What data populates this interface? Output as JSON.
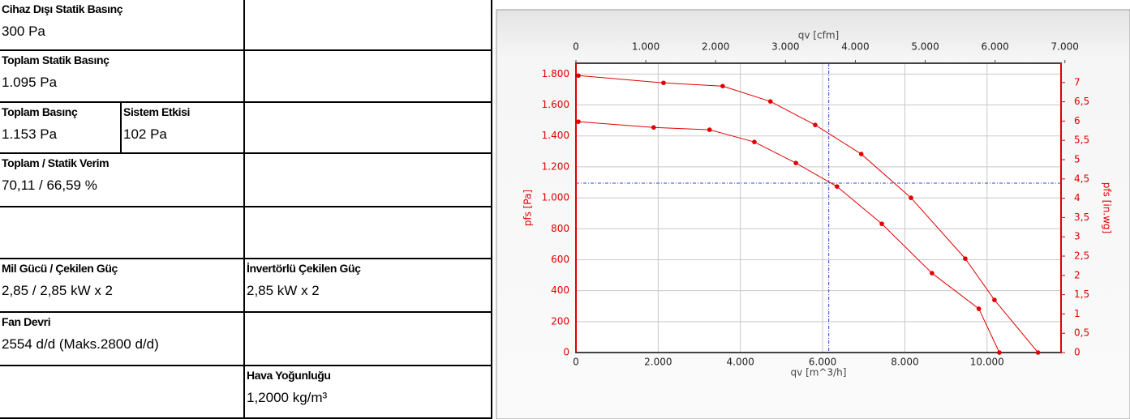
{
  "table": {
    "cells": [
      {
        "label": "Cihaz Dışı Statik Basınç",
        "value": "300 Pa"
      },
      {
        "label": "Toplam Statik Basınç",
        "value": "1.095 Pa"
      },
      {
        "label": "Toplam Basınç",
        "value": "1.153 Pa"
      },
      {
        "label": "Sistem Etkisi",
        "value": "102 Pa"
      },
      {
        "label": "Toplam / Statik Verim",
        "value": "70,11 / 66,59 %"
      },
      {
        "label": "Mil Gücü / Çekilen Güç",
        "value": "2,85 / 2,85 kW x 2"
      },
      {
        "label": "İnvertörlü Çekilen Güç",
        "value": "2,85 kW x 2"
      },
      {
        "label": "Fan Devri",
        "value": "2554 d/d (Maks.2800 d/d)"
      },
      {
        "label": "Hava Yoğunluğu",
        "value": "1,2000 kg/m³"
      }
    ]
  },
  "chart_data": {
    "type": "line",
    "xlabel": "qv [m^3/h]",
    "x2label": "qv [cfm]",
    "ylabel": "pfs [Pa]",
    "y2label": "pfs [in.wg]",
    "xlim": [
      0,
      11800
    ],
    "ylim": [
      0,
      1870
    ],
    "x2lim": [
      0,
      6945
    ],
    "y2lim": [
      0,
      7.5
    ],
    "xticks": [
      0,
      {
        "value": 2000,
        "label": "2.000"
      },
      {
        "value": 4000,
        "label": "4.000"
      },
      {
        "value": 6000,
        "label": "6.000"
      },
      {
        "value": 8000,
        "label": "8.000"
      },
      {
        "value": 10000,
        "label": "10.000"
      }
    ],
    "yticks": [
      0,
      200,
      400,
      600,
      800,
      {
        "value": 1000,
        "label": "1.000"
      },
      {
        "value": 1200,
        "label": "1.200"
      },
      {
        "value": 1400,
        "label": "1.400"
      },
      {
        "value": 1600,
        "label": "1.600"
      },
      {
        "value": 1800,
        "label": "1.800"
      }
    ],
    "x2ticks": [
      0,
      {
        "value": 1000,
        "label": "1.000"
      },
      {
        "value": 2000,
        "label": "2.000"
      },
      {
        "value": 3000,
        "label": "3.000"
      },
      {
        "value": 4000,
        "label": "4.000"
      },
      {
        "value": 5000,
        "label": "5.000"
      },
      {
        "value": 6000,
        "label": "6.000"
      },
      {
        "value": 7000,
        "label": "7.000"
      }
    ],
    "y2ticks": [
      0,
      {
        "value": 0.5,
        "label": "0,5"
      },
      1,
      {
        "value": 1.5,
        "label": "1,5"
      },
      2,
      {
        "value": 2.5,
        "label": "2,5"
      },
      3,
      {
        "value": 3.5,
        "label": "3,5"
      },
      4,
      {
        "value": 4.5,
        "label": "4,5"
      },
      5,
      {
        "value": 5.5,
        "label": "5,5"
      },
      6,
      {
        "value": 6.5,
        "label": "6,5"
      },
      7
    ],
    "grid": true,
    "series": [
      {
        "color": "#e00000",
        "x": [
          60,
          2130,
          3570,
          4730,
          5820,
          6940,
          8150,
          9470,
          10180,
          11240
        ],
        "values": [
          1790,
          1743,
          1722,
          1623,
          1471,
          1283,
          1000,
          607,
          340,
          0
        ]
      },
      {
        "color": "#e00000",
        "x": [
          60,
          1890,
          3250,
          4340,
          5350,
          6350,
          7440,
          8660,
          9800,
          10300
        ],
        "values": [
          1492,
          1455,
          1440,
          1361,
          1225,
          1073,
          832,
          513,
          283,
          0
        ]
      }
    ],
    "operating_point": {
      "x": 6150,
      "y": 1095,
      "color": "#3344cc"
    }
  }
}
